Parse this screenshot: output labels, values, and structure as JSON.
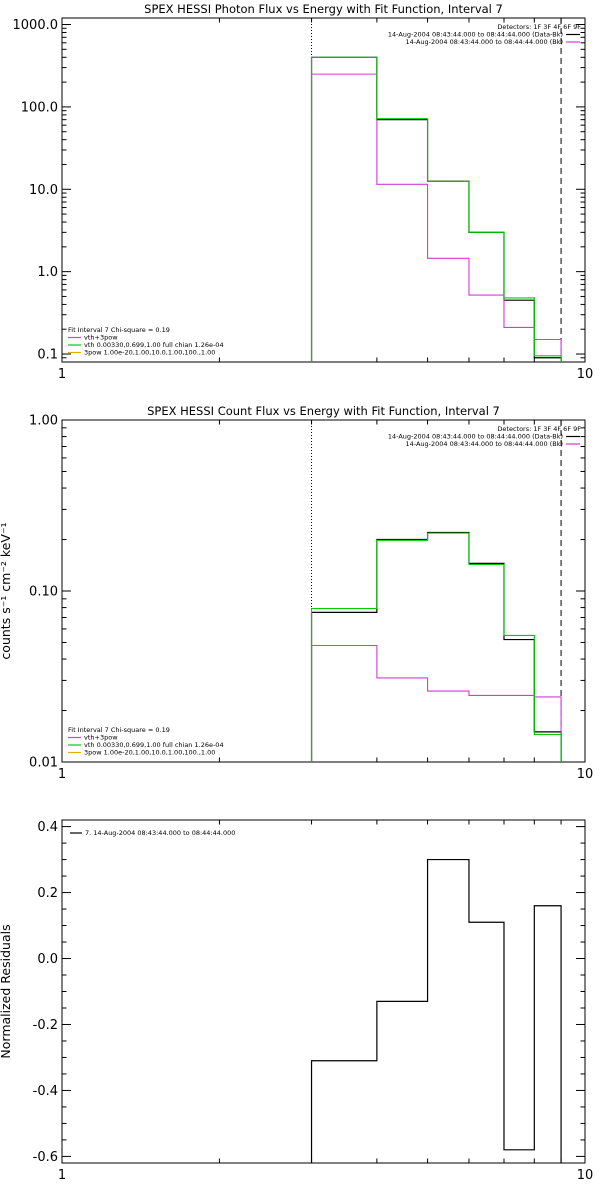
{
  "colors": {
    "background": "#ffffff",
    "axes": "#000000",
    "data_bk": "#000000",
    "bk": "#d63ad6",
    "fit_total": "#d63ad6",
    "fit_vth": "#00cc00",
    "fit_3pow": "#e0b000"
  },
  "chart_data": [
    {
      "type": "line",
      "title": "SPEX HESSI Photon Flux vs Energy with Fit Function, Interval 7",
      "xlabel": "",
      "ylabel": "",
      "xscale": "log",
      "yscale": "log",
      "xlim": [
        1,
        10
      ],
      "ylim": [
        0.08,
        1200
      ],
      "ytick_values": [
        0.1,
        1.0,
        10.0,
        100.0,
        1000.0
      ],
      "ytick_labels": [
        "0.1",
        "1.0",
        "10.0",
        "100.0",
        "1000.0"
      ],
      "xtick_values": [
        1,
        10
      ],
      "xtick_labels": [
        "1",
        "10"
      ],
      "vlines": [
        {
          "x": 3.0,
          "style": "dotted"
        },
        {
          "x": 9.0,
          "style": "dashed"
        }
      ],
      "legend_top": {
        "detectors": "Detectors: 1F 3F 4F 6F 9F",
        "entries": [
          {
            "label": "14-Aug-2004 08:43:44.000 to 08:44:44.000 (Data-Bk)",
            "color": "#000000"
          },
          {
            "label": "14-Aug-2004 08:43:44.000 to 08:44:44.000 (Bk)",
            "color": "#d63ad6"
          }
        ]
      },
      "legend_bottom": {
        "header": "Fit Interval 7   Chi-square = 0.19",
        "entries": [
          {
            "label": "vth+3pow",
            "color": "#d63ad6"
          },
          {
            "label": "vth 0.00330,0.699,1.00   full chian 1.26e-04",
            "color": "#00cc00"
          },
          {
            "label": "3pow 1.00e-20,1.00,10.0,1.00,100.,1.00",
            "color": "#e0b000"
          }
        ]
      },
      "bin_edges": [
        3.0,
        4.0,
        5.0,
        6.0,
        7.0,
        8.0,
        9.0
      ],
      "series": [
        {
          "name": "Data-Bk",
          "values": [
            400,
            70,
            12.5,
            3.0,
            0.45,
            0.09
          ]
        },
        {
          "name": "Bk",
          "values": [
            250,
            11.5,
            1.45,
            0.52,
            0.21,
            0.15
          ]
        },
        {
          "name": "vth",
          "values": [
            400,
            72,
            12.5,
            3.0,
            0.48,
            0.095
          ]
        }
      ]
    },
    {
      "type": "line",
      "title": "SPEX HESSI Count Flux vs Energy with Fit Function, Interval 7",
      "xlabel": "",
      "ylabel": "counts s⁻¹ cm⁻² keV⁻¹",
      "xscale": "log",
      "yscale": "log",
      "xlim": [
        1,
        10
      ],
      "ylim": [
        0.01,
        1.0
      ],
      "ytick_values": [
        0.01,
        0.1,
        1.0
      ],
      "ytick_labels": [
        "0.01",
        "0.10",
        "1.00"
      ],
      "xtick_values": [
        1,
        10
      ],
      "xtick_labels": [
        "1",
        "10"
      ],
      "vlines": [
        {
          "x": 3.0,
          "style": "dotted"
        },
        {
          "x": 9.0,
          "style": "dashed"
        }
      ],
      "legend_top": {
        "detectors": "Detectors: 1F 3F 4F 6F 9F",
        "entries": [
          {
            "label": "14-Aug-2004 08:43:44.000 to 08:44:44.000 (Data-Bk)",
            "color": "#000000"
          },
          {
            "label": "14-Aug-2004 08:43:44.000 to 08:44:44.000 (Bk)",
            "color": "#d63ad6"
          }
        ]
      },
      "legend_bottom": {
        "header": "Fit Interval 7   Chi-square = 0.19",
        "entries": [
          {
            "label": "vth+3pow",
            "color": "#d63ad6"
          },
          {
            "label": "vth 0.00330,0.699,1.00   full chian 1.26e-04",
            "color": "#00cc00"
          },
          {
            "label": "3pow 1.00e-20,1.00,10.0,1.00,100.,1.00",
            "color": "#e0b000"
          }
        ]
      },
      "bin_edges": [
        3.0,
        4.0,
        5.0,
        6.0,
        7.0,
        8.0,
        9.0
      ],
      "series": [
        {
          "name": "Data-Bk",
          "values": [
            0.075,
            0.2,
            0.22,
            0.145,
            0.052,
            0.015
          ]
        },
        {
          "name": "Bk",
          "values": [
            0.048,
            0.031,
            0.026,
            0.0245,
            0.0245,
            0.024
          ]
        },
        {
          "name": "vth",
          "values": [
            0.079,
            0.198,
            0.218,
            0.143,
            0.055,
            0.0145
          ]
        }
      ]
    },
    {
      "type": "line",
      "title": "",
      "xlabel": "",
      "ylabel": "Normalized Residuals",
      "xscale": "log",
      "yscale": "linear",
      "xlim": [
        1,
        10
      ],
      "ylim": [
        -0.62,
        0.42
      ],
      "ytick_values": [
        -0.6,
        -0.4,
        -0.2,
        0.0,
        0.2,
        0.4
      ],
      "ytick_labels": [
        "-0.6",
        "-0.4",
        "-0.2",
        "0.0",
        "0.2",
        "0.4"
      ],
      "xtick_values": [
        1,
        10
      ],
      "xtick_labels": [
        "1",
        "10"
      ],
      "legend_top": {
        "entries": [
          {
            "label": "7. 14-Aug-2004 08:43:44.000 to 08:44:44.000",
            "color": "#000000"
          }
        ]
      },
      "bin_edges": [
        3.0,
        4.0,
        5.0,
        6.0,
        7.0,
        8.0,
        9.0
      ],
      "series": [
        {
          "name": "Residuals",
          "values": [
            -0.31,
            -0.13,
            0.3,
            0.11,
            -0.58,
            0.16
          ]
        }
      ]
    }
  ]
}
